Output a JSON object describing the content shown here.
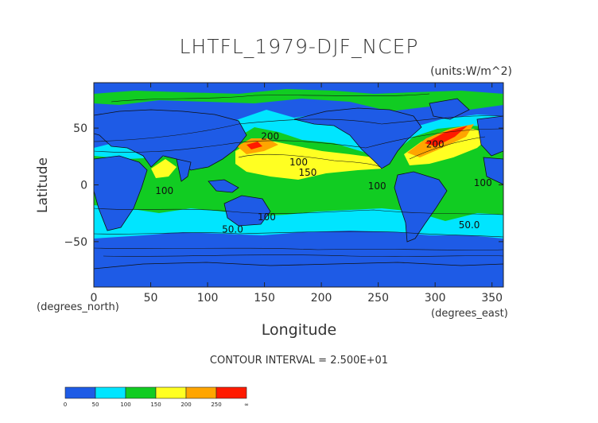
{
  "chart_data": {
    "type": "contour-map",
    "title": "LHTFL_1979-DJF_NCEP",
    "units_label": "(units:W/m^2)",
    "xlabel": "Longitude",
    "ylabel": "Latitude",
    "x_units_label": "(degrees_north)",
    "x_units_label_2": "(degrees_east)",
    "xlim": [
      0,
      360
    ],
    "ylim": [
      -90,
      90
    ],
    "x_ticks": [
      "0",
      "50",
      "100",
      "150",
      "200",
      "250",
      "300",
      "350"
    ],
    "y_ticks": [
      "50",
      "0",
      "−50"
    ],
    "contour_interval_text": "CONTOUR INTERVAL = 2.500E+01",
    "contour_labels": [
      {
        "text": "200",
        "lon": 155,
        "lat": 40
      },
      {
        "text": "200",
        "lon": 300,
        "lat": 33
      },
      {
        "text": "150",
        "lon": 188,
        "lat": 8
      },
      {
        "text": "100",
        "lon": 62,
        "lat": -8
      },
      {
        "text": "100",
        "lon": 249,
        "lat": -4
      },
      {
        "text": "100",
        "lon": 342,
        "lat": -1
      },
      {
        "text": "100",
        "lon": 152,
        "lat": -31
      },
      {
        "text": "50.0",
        "lon": 122,
        "lat": -42
      },
      {
        "text": "50.0",
        "lon": 330,
        "lat": -38
      },
      {
        "text": "100",
        "lon": 180,
        "lat": 17
      }
    ],
    "colorbar": {
      "ticks": [
        "0",
        "50",
        "100",
        "150",
        "200",
        "250",
        "∞"
      ],
      "colors": [
        "#1e5be6",
        "#00e5ff",
        "#11cc22",
        "#ffff22",
        "#ffa500",
        "#ff1a00"
      ]
    },
    "palette": {
      "lt50": "#1e5be6",
      "50_100": "#00e5ff",
      "100_150": "#11cc22",
      "150_200": "#ffff22",
      "200_250": "#ffa500",
      "gt250": "#ff1a00"
    }
  }
}
